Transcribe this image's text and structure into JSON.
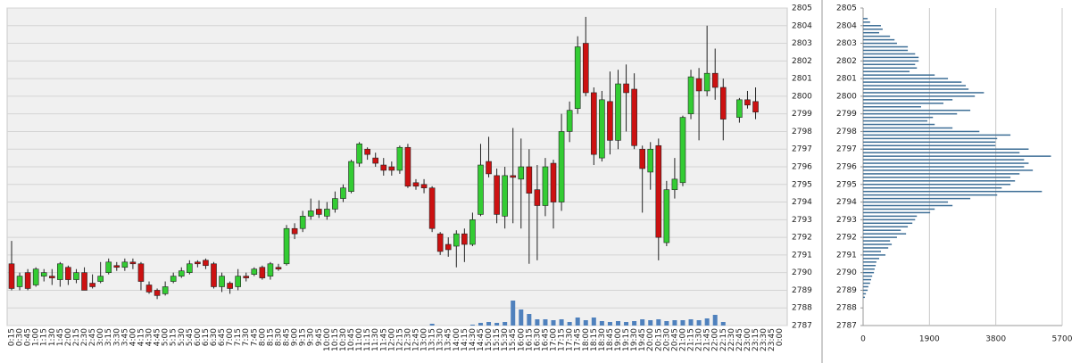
{
  "chart_data": [
    {
      "type": "candlestick",
      "categories": [
        "0:15",
        "0:30",
        "0:45",
        "1:00",
        "1:15",
        "1:30",
        "1:45",
        "2:00",
        "2:15",
        "2:30",
        "2:45",
        "3:00",
        "3:15",
        "3:30",
        "3:45",
        "4:00",
        "4:15",
        "4:30",
        "4:45",
        "5:00",
        "5:15",
        "5:30",
        "5:45",
        "6:00",
        "6:15",
        "6:30",
        "6:45",
        "7:00",
        "7:15",
        "7:30",
        "7:45",
        "8:00",
        "8:15",
        "8:30",
        "8:45",
        "9:00",
        "9:15",
        "9:30",
        "9:45",
        "10:00",
        "10:15",
        "10:30",
        "10:45",
        "11:00",
        "11:15",
        "11:30",
        "11:45",
        "12:00",
        "12:15",
        "12:30",
        "12:45",
        "13:00",
        "13:15",
        "13:30",
        "13:45",
        "14:00",
        "14:15",
        "14:30",
        "14:45",
        "15:00",
        "15:15",
        "15:30",
        "15:45",
        "16:00",
        "16:15",
        "16:30",
        "16:45",
        "17:00",
        "17:15",
        "17:30",
        "17:45",
        "18:00",
        "18:15",
        "18:30",
        "18:45",
        "19:00",
        "19:15",
        "19:30",
        "19:45",
        "20:00",
        "20:15",
        "20:30",
        "20:45",
        "21:00",
        "21:15",
        "21:30",
        "21:45",
        "22:00",
        "22:15",
        "22:30",
        "22:45",
        "23:00",
        "23:15",
        "23:30",
        "23:45",
        "0:00"
      ],
      "open": [
        2790.5,
        2789.2,
        2790,
        2789.3,
        2789.8,
        2789.8,
        2789.6,
        2790.3,
        2789.6,
        2790,
        2789.4,
        2789.5,
        2790,
        2790.4,
        2790.3,
        2790.6,
        2790.5,
        2789.3,
        2789,
        2788.8,
        2789.5,
        2789.8,
        2790,
        2790.6,
        2790.7,
        2790.5,
        2789.2,
        2789.4,
        2789.2,
        2789.8,
        2789.9,
        2790.3,
        2789.8,
        2790.3,
        2790.5,
        2792.5,
        2792.5,
        2793.2,
        2793.6,
        2793.2,
        2793.6,
        2794.2,
        2794.6,
        2796.2,
        2797,
        2796.5,
        2796.1,
        2796,
        2795.8,
        2797.1,
        2795.1,
        2795,
        2794.8,
        2792.2,
        2791.6,
        2791.5,
        2792.2,
        2791.6,
        2793.3,
        2796.3,
        2795.5,
        2793.2,
        2795.5,
        2795.3,
        2796,
        2794.7,
        2793.8,
        2796.2,
        2794,
        2798,
        2799.3,
        2803,
        2800.2,
        2796.5,
        2799.7,
        2797.5,
        2800.7,
        2800.4,
        2797,
        2795.7,
        2797.2,
        2791.7,
        2794.7,
        2795.1,
        2799,
        2801,
        2800.3,
        2801.3,
        2800.5,
        null,
        2798.8,
        2799.8,
        2799.7,
        null,
        null,
        null
      ],
      "high": [
        2791.8,
        2790,
        2790.2,
        2790.3,
        2790.2,
        2790.2,
        2790.6,
        2790.4,
        2790.2,
        2790.3,
        2789.9,
        2790.6,
        2790.8,
        2790.6,
        2790.8,
        2790.8,
        2790.6,
        2789.5,
        2789.1,
        2789.5,
        2790,
        2790.3,
        2790.7,
        2790.7,
        2790.8,
        2790.6,
        2790,
        2789.5,
        2790.2,
        2790,
        2790.3,
        2790.4,
        2790.6,
        2790.5,
        2792.7,
        2792.8,
        2793.5,
        2794.2,
        2794.1,
        2794,
        2794.6,
        2795,
        2796.4,
        2797.4,
        2797.1,
        2796.8,
        2796.5,
        2796.3,
        2797.2,
        2797.3,
        2795.3,
        2795.3,
        2794.9,
        2792.3,
        2792,
        2792.4,
        2792.5,
        2793.4,
        2797.3,
        2797.7,
        2795.9,
        2796,
        2798.2,
        2797.6,
        2797,
        2796.1,
        2796.5,
        2796.4,
        2799,
        2799.7,
        2803.4,
        2804.5,
        2800.5,
        2800.3,
        2801.4,
        2801.5,
        2801.8,
        2801.3,
        2797.2,
        2797.4,
        2797.6,
        2795.2,
        2796.5,
        2798.9,
        2801.5,
        2801.6,
        2804,
        2802.7,
        2801,
        null,
        2799.9,
        2800.3,
        2800.5,
        null,
        null,
        null
      ],
      "low": [
        2789,
        2789,
        2789,
        2789.2,
        2789.5,
        2789.3,
        2789.2,
        2789.3,
        2789.4,
        2789,
        2789.1,
        2789.4,
        2789.9,
        2790.1,
        2790.1,
        2790.2,
        2789,
        2788.8,
        2788.5,
        2788.7,
        2789.4,
        2789.7,
        2789.9,
        2790.3,
        2790.2,
        2789.1,
        2788.9,
        2788.8,
        2789,
        2789.5,
        2789.8,
        2789.6,
        2789.6,
        2790.1,
        2790.4,
        2791.9,
        2792.3,
        2793,
        2793.1,
        2793,
        2793.4,
        2794,
        2794.5,
        2796,
        2796.4,
        2796,
        2795.5,
        2795.5,
        2795.6,
        2794.8,
        2794.7,
        2794.5,
        2792.3,
        2791,
        2790.9,
        2790.3,
        2790.6,
        2791.5,
        2793.2,
        2795.4,
        2792.8,
        2792.5,
        2792.8,
        2792.5,
        2790.5,
        2790.7,
        2793.2,
        2792.5,
        2793.5,
        2797.4,
        2799,
        2800,
        2796.1,
        2796.3,
        2796.7,
        2797,
        2798,
        2797,
        2793.4,
        2794.7,
        2790.7,
        2791.5,
        2794.2,
        2794.9,
        2798.7,
        2797.5,
        2800,
        2799.8,
        2797.5,
        null,
        2798.5,
        2799.3,
        2798.7,
        null,
        null,
        null
      ],
      "close": [
        2789.1,
        2789.8,
        2789.1,
        2790.2,
        2790,
        2789.7,
        2790.5,
        2789.6,
        2790,
        2789,
        2789.2,
        2789.8,
        2790.6,
        2790.3,
        2790.6,
        2790.5,
        2789.5,
        2788.9,
        2788.7,
        2789.2,
        2789.8,
        2790.1,
        2790.5,
        2790.5,
        2790.4,
        2789.2,
        2789.8,
        2789.1,
        2789.8,
        2789.7,
        2790.2,
        2789.7,
        2790.5,
        2790.2,
        2792.5,
        2792.2,
        2793.2,
        2793.5,
        2793.3,
        2793.6,
        2794.2,
        2794.8,
        2796.3,
        2797.3,
        2796.7,
        2796.2,
        2795.8,
        2795.8,
        2797.1,
        2794.9,
        2794.9,
        2794.8,
        2792.5,
        2791.2,
        2791.3,
        2792.2,
        2791.6,
        2793,
        2796.1,
        2795.6,
        2793.3,
        2795.5,
        2795.4,
        2796,
        2794.5,
        2793.8,
        2796,
        2794,
        2798,
        2799.2,
        2802.8,
        2800.2,
        2796.7,
        2799.8,
        2797.5,
        2800.7,
        2800.2,
        2797.2,
        2795.9,
        2797,
        2792,
        2794.7,
        2795.3,
        2798.8,
        2801.1,
        2800.3,
        2801.3,
        2800.5,
        2798.7,
        null,
        2799.8,
        2799.5,
        2799.1,
        null,
        null,
        null
      ],
      "volume": [
        0,
        0,
        0,
        0,
        0,
        0,
        0,
        0,
        0,
        0,
        0,
        0,
        0,
        0,
        0,
        0,
        0,
        0,
        0,
        0,
        0,
        0,
        0,
        0,
        0,
        0,
        0,
        0,
        0,
        0,
        0,
        0,
        0,
        0,
        0,
        0,
        0,
        0,
        0,
        0,
        0,
        0,
        0,
        0,
        0,
        0,
        0,
        0,
        0,
        0,
        0,
        0,
        2,
        0,
        0,
        0,
        0,
        1,
        3,
        4,
        3,
        4,
        28,
        18,
        13,
        7,
        7,
        6,
        7,
        4,
        9,
        6,
        9,
        5,
        4,
        5,
        4,
        5,
        7,
        6,
        7,
        5,
        6,
        6,
        7,
        6,
        8,
        12,
        4,
        null,
        null,
        null,
        null,
        null,
        null,
        null
      ],
      "up_color": "#33cc33",
      "down_color": "#cc1111",
      "volume_color": "#4f81bd",
      "ylim": [
        2787,
        2805
      ],
      "yticks": [
        2787,
        2788,
        2789,
        2790,
        2791,
        2792,
        2793,
        2794,
        2795,
        2796,
        2797,
        2798,
        2799,
        2800,
        2801,
        2802,
        2803,
        2804,
        2805
      ],
      "grid": true
    },
    {
      "type": "bar",
      "orientation": "horizontal",
      "y": [
        2804.4,
        2804.2,
        2804,
        2803.8,
        2803.6,
        2803.4,
        2803.2,
        2803,
        2802.8,
        2802.6,
        2802.4,
        2802.2,
        2802,
        2801.8,
        2801.6,
        2801.4,
        2801.2,
        2801,
        2800.8,
        2800.6,
        2800.4,
        2800.2,
        2800,
        2799.8,
        2799.6,
        2799.4,
        2799.2,
        2799,
        2798.8,
        2798.6,
        2798.4,
        2798.2,
        2798,
        2797.8,
        2797.6,
        2797.4,
        2797.2,
        2797,
        2796.8,
        2796.6,
        2796.4,
        2796.2,
        2796,
        2795.8,
        2795.6,
        2795.4,
        2795.2,
        2795,
        2794.8,
        2794.6,
        2794.4,
        2794.2,
        2794,
        2793.8,
        2793.6,
        2793.4,
        2793.2,
        2793,
        2792.8,
        2792.6,
        2792.4,
        2792.2,
        2792,
        2791.8,
        2791.6,
        2791.4,
        2791.2,
        2791,
        2790.8,
        2790.6,
        2790.4,
        2790.2,
        2790,
        2789.8,
        2789.6,
        2789.4,
        2789.2,
        2789,
        2788.8,
        2788.6
      ],
      "values": [
        130,
        200,
        510,
        560,
        460,
        770,
        900,
        970,
        1280,
        1280,
        1490,
        1590,
        1590,
        1490,
        1540,
        1330,
        2050,
        2430,
        2820,
        2940,
        3020,
        3460,
        3200,
        2560,
        2300,
        1660,
        3070,
        2690,
        2000,
        1840,
        2050,
        2560,
        3330,
        4220,
        3840,
        3790,
        3790,
        4740,
        4480,
        5380,
        4610,
        4740,
        4610,
        4860,
        4480,
        4220,
        4350,
        4220,
        3970,
        5120,
        3840,
        3070,
        2430,
        2560,
        2050,
        1920,
        1540,
        1490,
        1410,
        1280,
        1080,
        1230,
        970,
        770,
        820,
        720,
        510,
        640,
        460,
        380,
        360,
        330,
        310,
        260,
        230,
        200,
        150,
        130,
        80,
        50
      ],
      "color": "#3d6e96",
      "ylim": [
        2787,
        2805
      ],
      "yticks": [
        2787,
        2788,
        2789,
        2790,
        2791,
        2792,
        2793,
        2794,
        2795,
        2796,
        2797,
        2798,
        2799,
        2800,
        2801,
        2802,
        2803,
        2804,
        2805
      ],
      "xlim": [
        0,
        5700
      ],
      "xticks": [
        0,
        1900,
        3800,
        5700
      ],
      "grid": true
    }
  ]
}
